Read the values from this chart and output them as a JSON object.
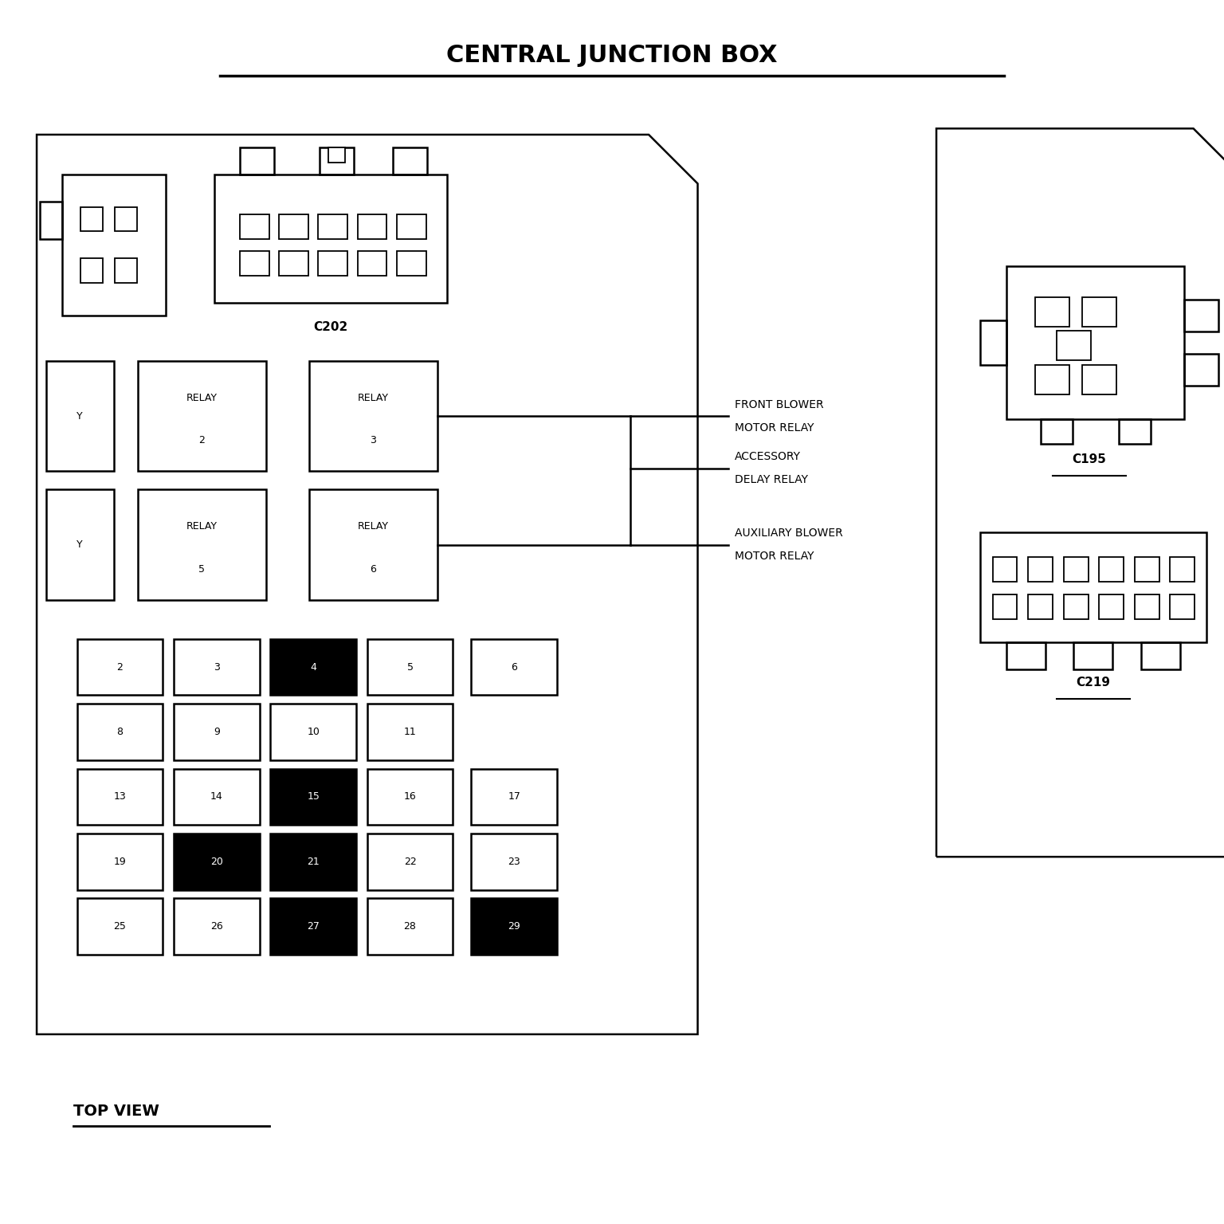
{
  "title": "CENTRAL JUNCTION BOX",
  "background_color": "#ffffff",
  "line_color": "#000000",
  "title_fontsize": 22,
  "bottom_label": "TOP VIEW",
  "fuse_grid": [
    [
      [
        "2",
        false
      ],
      [
        "3",
        false
      ],
      [
        "4",
        true
      ],
      [
        "5",
        false
      ]
    ],
    [
      [
        "8",
        false
      ],
      [
        "9",
        false
      ],
      [
        "10",
        false
      ],
      [
        "11",
        false
      ]
    ],
    [
      [
        "13",
        false
      ],
      [
        "14",
        false
      ],
      [
        "15",
        true
      ],
      [
        "16",
        false
      ]
    ],
    [
      [
        "19",
        false
      ],
      [
        "20",
        true
      ],
      [
        "21",
        true
      ],
      [
        "22",
        false
      ]
    ],
    [
      [
        "25",
        false
      ],
      [
        "26",
        false
      ],
      [
        "27",
        true
      ],
      [
        "28",
        false
      ]
    ]
  ],
  "fuse_col5": [
    [
      "6",
      false,
      0
    ],
    [
      "17",
      false,
      2
    ],
    [
      "23",
      false,
      3
    ],
    [
      "29",
      true,
      4
    ]
  ]
}
